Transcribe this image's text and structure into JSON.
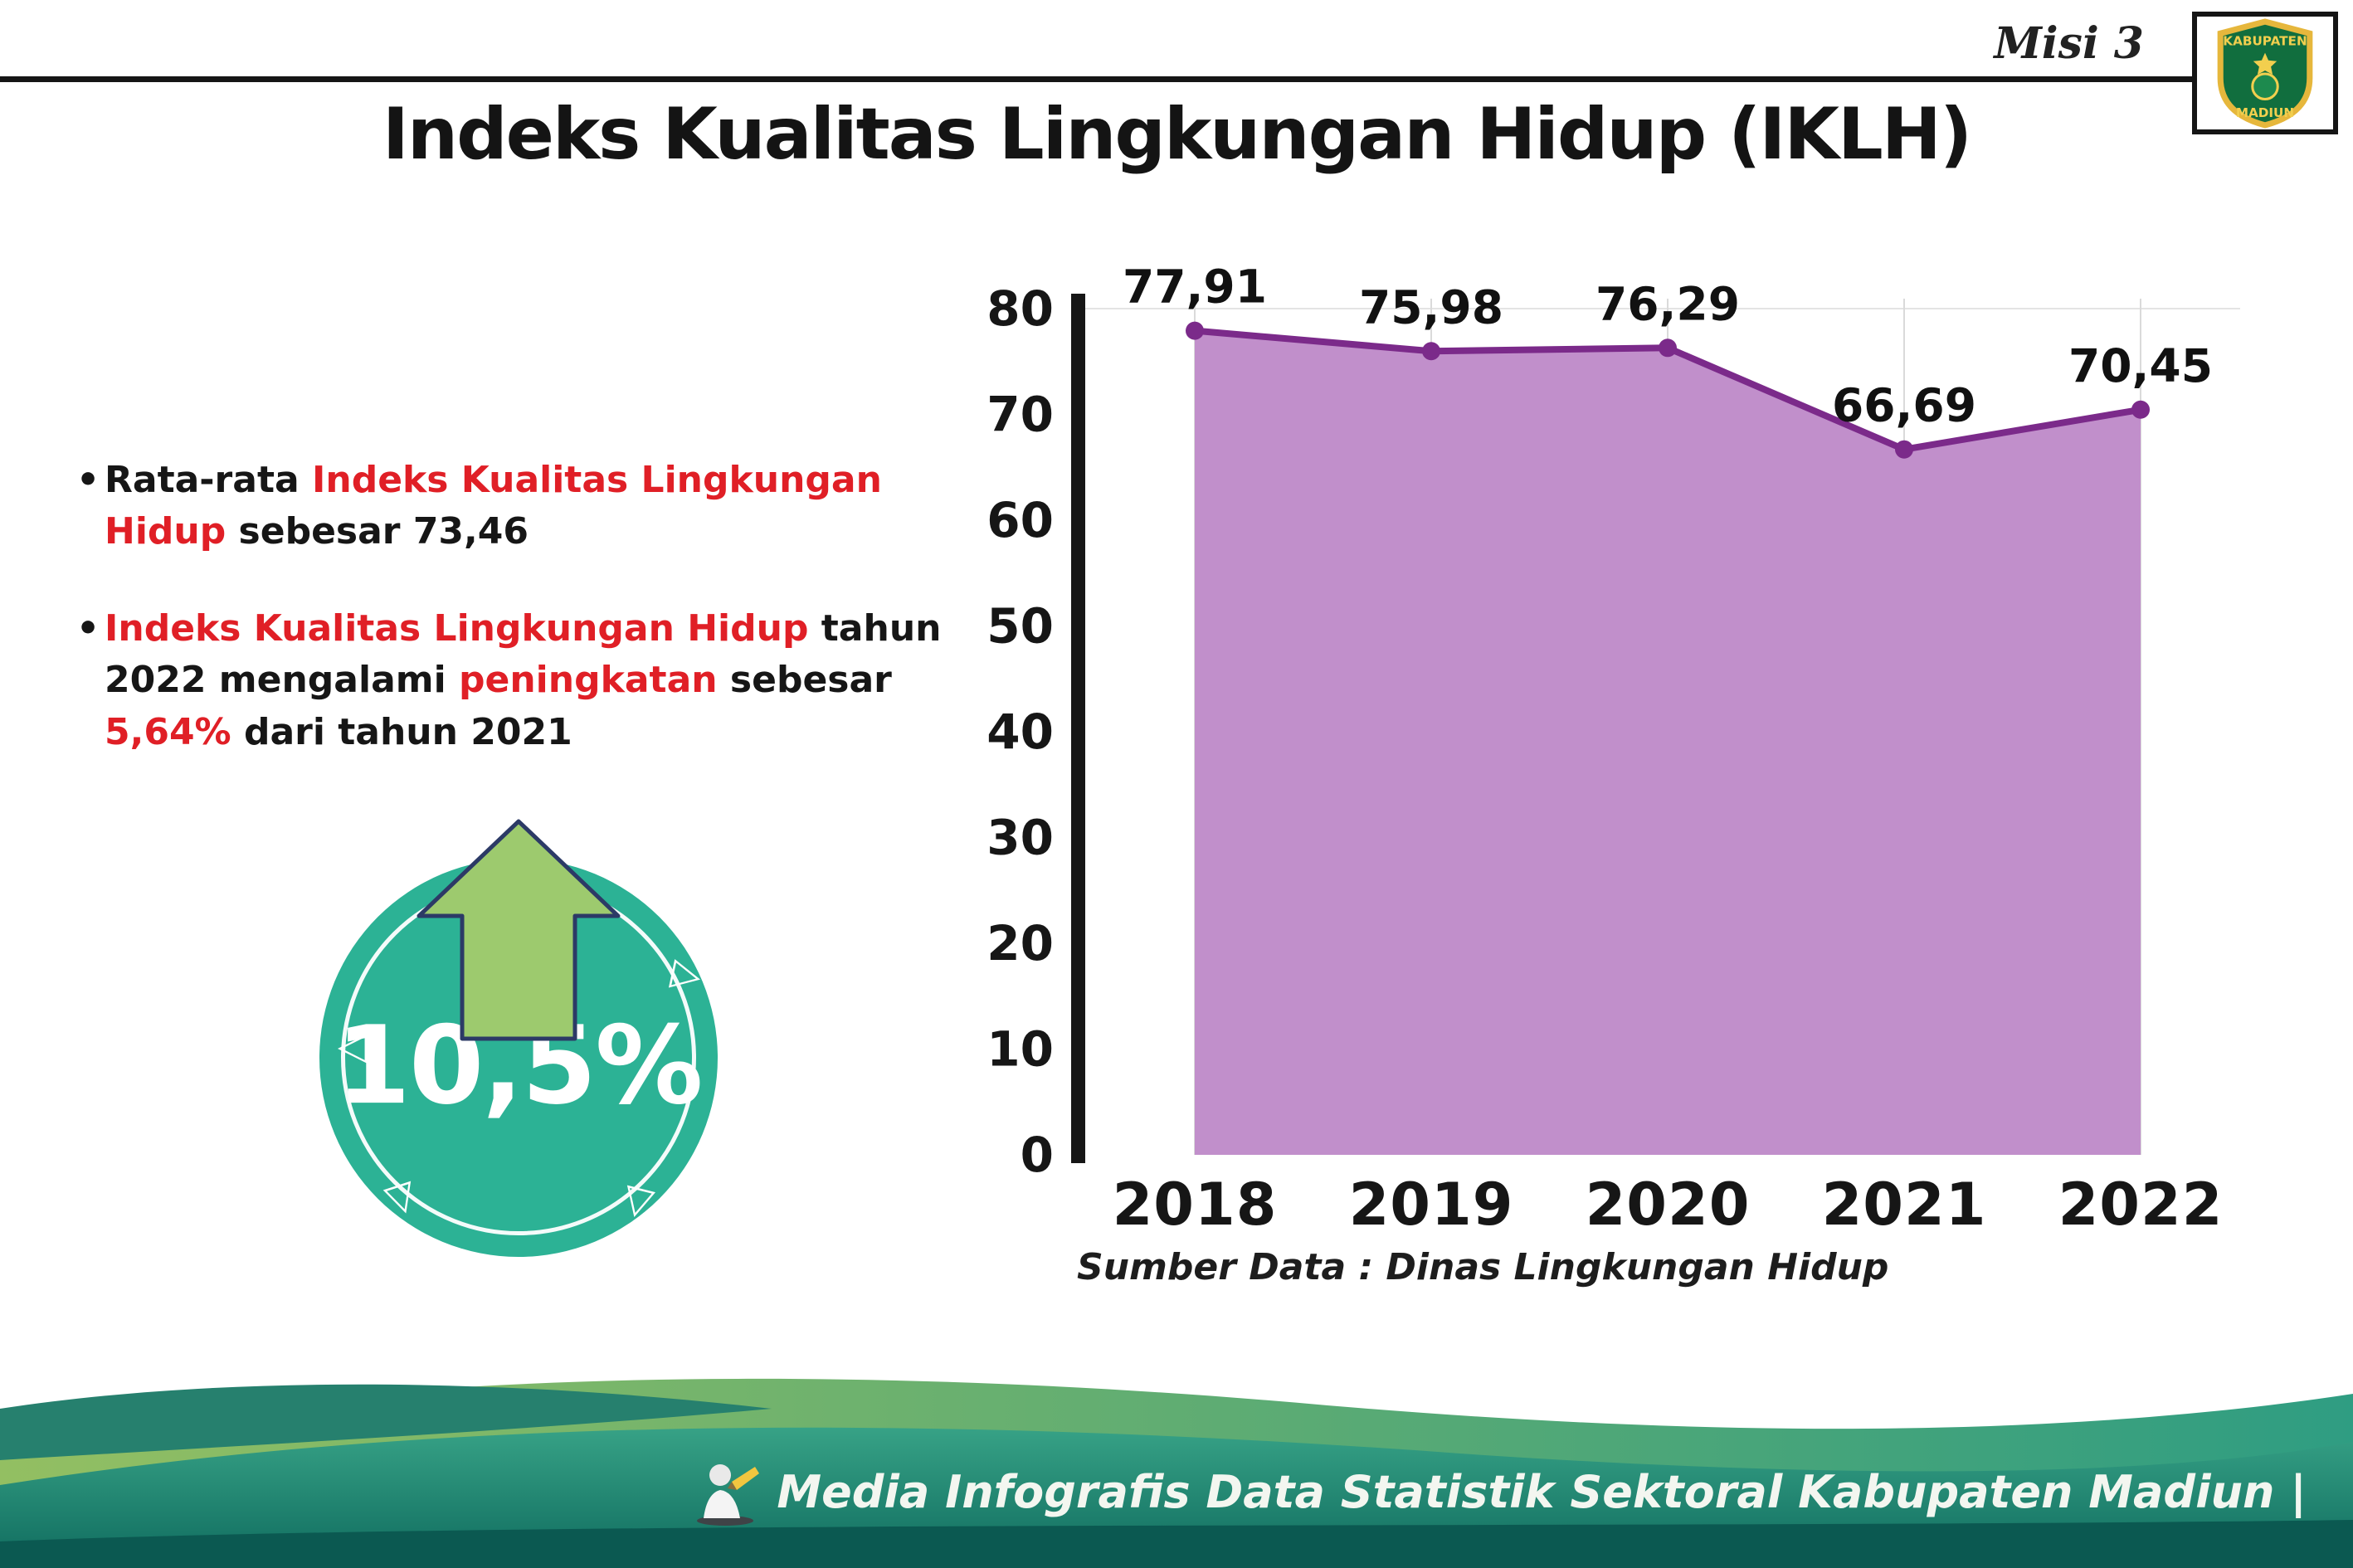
{
  "colors": {
    "accent_red": "#e01f26",
    "badge_teal": "#2cb295",
    "arrow_green": "#9dca6e",
    "footer_dark_teal": "#0b5951"
  },
  "header": {
    "misi": "Misi 3",
    "title": "Indeks Kualitas Lingkungan Hidup (IKLH)",
    "logo": {
      "top_text": "KABUPATEN",
      "bottom_text": "MADIUN"
    }
  },
  "bullet_marker": "•",
  "bullets": [
    {
      "segments": [
        {
          "text": "Rata-rata "
        },
        {
          "text": "Indeks Kualitas Lingkungan Hidup"
        },
        {
          "text": " sebesar 73,46"
        }
      ]
    },
    {
      "segments": [
        {
          "text": "Indeks Kualitas Lingkungan Hidup"
        },
        {
          "text": " tahun 2022 mengalami "
        },
        {
          "text": "peningkatan"
        },
        {
          "text": " sebesar "
        },
        {
          "text": "5,64%"
        },
        {
          "text": " dari tahun 2021"
        }
      ]
    }
  ],
  "badge": {
    "value": "10,5%"
  },
  "chart_data": {
    "type": "area",
    "categories": [
      "2018",
      "2019",
      "2020",
      "2021",
      "2022"
    ],
    "values": [
      77.91,
      75.98,
      76.29,
      66.69,
      70.45
    ],
    "point_labels": [
      "77,91",
      "75,98",
      "76,29",
      "66,69",
      "70,45"
    ],
    "ylim": [
      0,
      80
    ],
    "ytick_step": 10,
    "grid": "vertical",
    "legend": "none",
    "fill_color": "#c18fcb",
    "line_color": "#7b2a8a",
    "source": "Sumber Data : Dinas Lingkungan Hidup"
  },
  "footer": {
    "credit": "Media Infografis Data Statistik Sektoral Kabupaten Madiun |"
  }
}
